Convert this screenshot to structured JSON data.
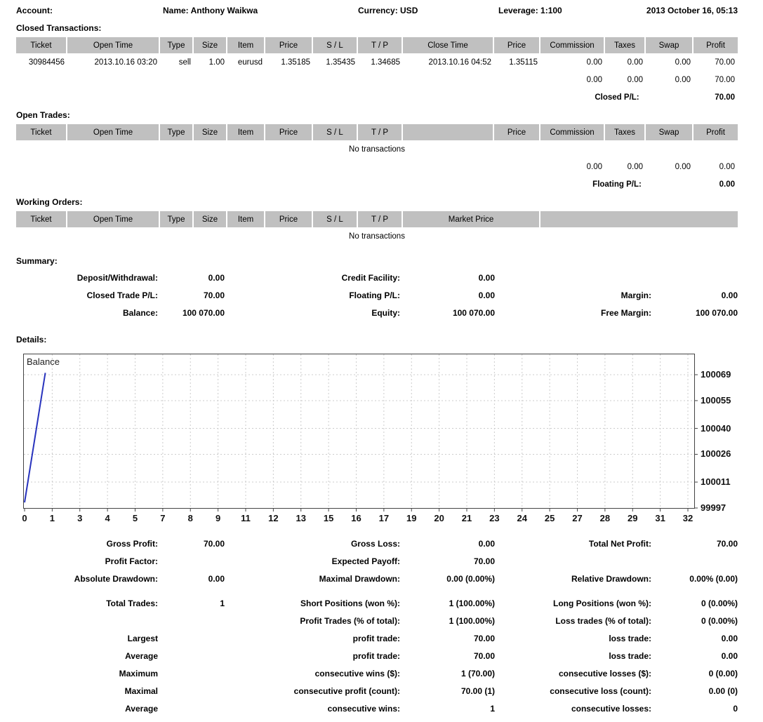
{
  "colors": {
    "accent_line": "#2833bd",
    "table_header_bg": "#c0c0c0",
    "grid_line": "#cccccc",
    "chart_border": "#444444"
  },
  "topbar": {
    "account": "Account:",
    "name": "Name: Anthony Waikwa",
    "currency": "Currency: USD",
    "leverage": "Leverage: 1:100",
    "datetime": "2013 October 16, 05:13"
  },
  "closed_transactions": {
    "title": "Closed Transactions:",
    "columns": [
      "Ticket",
      "Open Time",
      "Type",
      "Size",
      "Item",
      "Price",
      "S / L",
      "T / P",
      "Close Time",
      "Price",
      "Commission",
      "Taxes",
      "Swap",
      "Profit"
    ],
    "rows": [
      [
        "30984456",
        "2013.10.16 03:20",
        "sell",
        "1.00",
        "eurusd",
        "1.35185",
        "1.35435",
        "1.34685",
        "2013.10.16 04:52",
        "1.35115",
        "0.00",
        "0.00",
        "0.00",
        "70.00"
      ]
    ],
    "totals": [
      "0.00",
      "0.00",
      "0.00",
      "70.00"
    ],
    "pl_label": "Closed P/L:",
    "pl_value": "70.00"
  },
  "open_trades": {
    "title": "Open Trades:",
    "columns": [
      "Ticket",
      "Open Time",
      "Type",
      "Size",
      "Item",
      "Price",
      "S / L",
      "T / P",
      "",
      "Price",
      "Commission",
      "Taxes",
      "Swap",
      "Profit"
    ],
    "empty_text": "No transactions",
    "totals": [
      "0.00",
      "0.00",
      "0.00",
      "0.00"
    ],
    "pl_label": "Floating P/L:",
    "pl_value": "0.00"
  },
  "working_orders": {
    "title": "Working Orders:",
    "columns": [
      "Ticket",
      "Open Time",
      "Type",
      "Size",
      "Item",
      "Price",
      "S / L",
      "T / P",
      "Market Price",
      ""
    ],
    "empty_text": "No transactions"
  },
  "summary": {
    "title": "Summary:",
    "rows": [
      [
        {
          "label": "Deposit/Withdrawal:",
          "value": "0.00"
        },
        {
          "label": "Credit Facility:",
          "value": "0.00"
        },
        {
          "label": "",
          "value": ""
        }
      ],
      [
        {
          "label": "Closed Trade P/L:",
          "value": "70.00"
        },
        {
          "label": "Floating P/L:",
          "value": "0.00"
        },
        {
          "label": "Margin:",
          "value": "0.00"
        }
      ],
      [
        {
          "label": "Balance:",
          "value": "100 070.00"
        },
        {
          "label": "Equity:",
          "value": "100 070.00"
        },
        {
          "label": "Free Margin:",
          "value": "100 070.00"
        }
      ]
    ]
  },
  "details": {
    "title": "Details:",
    "chart_data": {
      "type": "line",
      "title": "Balance",
      "series": [
        {
          "name": "Balance",
          "x": [
            0,
            1
          ],
          "values": [
            100000,
            100070
          ]
        }
      ],
      "xlim": [
        0,
        32
      ],
      "ylim": [
        99997,
        100080
      ],
      "x_tick_labels": [
        "0",
        "1",
        "3",
        "4",
        "5",
        "7",
        "8",
        "9",
        "11",
        "12",
        "13",
        "15",
        "16",
        "17",
        "19",
        "20",
        "21",
        "23",
        "24",
        "25",
        "27",
        "28",
        "29",
        "31",
        "32"
      ],
      "y_ticks": [
        99997,
        100011,
        100026,
        100040,
        100055,
        100069
      ],
      "grid": "dashed",
      "legend_position": "top-left-inside",
      "line_color": "#2833bd"
    }
  },
  "stats": {
    "rows": [
      {
        "cells": [
          {
            "label": "Gross Profit:",
            "value": "70.00"
          },
          {
            "label": "Gross Loss:",
            "value": "0.00"
          },
          {
            "label": "Total Net Profit:",
            "value": "70.00"
          }
        ]
      },
      {
        "cells": [
          {
            "label": "Profit Factor:",
            "value": ""
          },
          {
            "label": "Expected Payoff:",
            "value": "70.00"
          },
          {
            "label": "",
            "value": ""
          }
        ]
      },
      {
        "cells": [
          {
            "label": "Absolute Drawdown:",
            "value": "0.00"
          },
          {
            "label": "Maximal Drawdown:",
            "value": "0.00 (0.00%)"
          },
          {
            "label": "Relative Drawdown:",
            "value": "0.00% (0.00)"
          }
        ]
      },
      {
        "gap": true,
        "cells": [
          {
            "label": "Total Trades:",
            "value": "1"
          },
          {
            "label": "Short Positions (won %):",
            "value": "1 (100.00%)"
          },
          {
            "label": "Long Positions (won %):",
            "value": "0 (0.00%)"
          }
        ]
      },
      {
        "cells": [
          {
            "label": "",
            "value": ""
          },
          {
            "label": "Profit Trades (% of total):",
            "value": "1 (100.00%)"
          },
          {
            "label": "Loss trades (% of total):",
            "value": "0 (0.00%)"
          }
        ]
      },
      {
        "cells": [
          {
            "label": "Largest",
            "value": ""
          },
          {
            "label": "profit trade:",
            "value": "70.00"
          },
          {
            "label": "loss trade:",
            "value": "0.00"
          }
        ]
      },
      {
        "cells": [
          {
            "label": "Average",
            "value": ""
          },
          {
            "label": "profit trade:",
            "value": "70.00"
          },
          {
            "label": "loss trade:",
            "value": "0.00"
          }
        ]
      },
      {
        "cells": [
          {
            "label": "Maximum",
            "value": ""
          },
          {
            "label": "consecutive wins ($):",
            "value": "1 (70.00)"
          },
          {
            "label": "consecutive losses ($):",
            "value": "0 (0.00)"
          }
        ]
      },
      {
        "cells": [
          {
            "label": "Maximal",
            "value": ""
          },
          {
            "label": "consecutive profit (count):",
            "value": "70.00 (1)"
          },
          {
            "label": "consecutive loss (count):",
            "value": "0.00 (0)"
          }
        ]
      },
      {
        "cells": [
          {
            "label": "Average",
            "value": ""
          },
          {
            "label": "consecutive wins:",
            "value": "1"
          },
          {
            "label": "consecutive losses:",
            "value": "0"
          }
        ]
      }
    ]
  }
}
